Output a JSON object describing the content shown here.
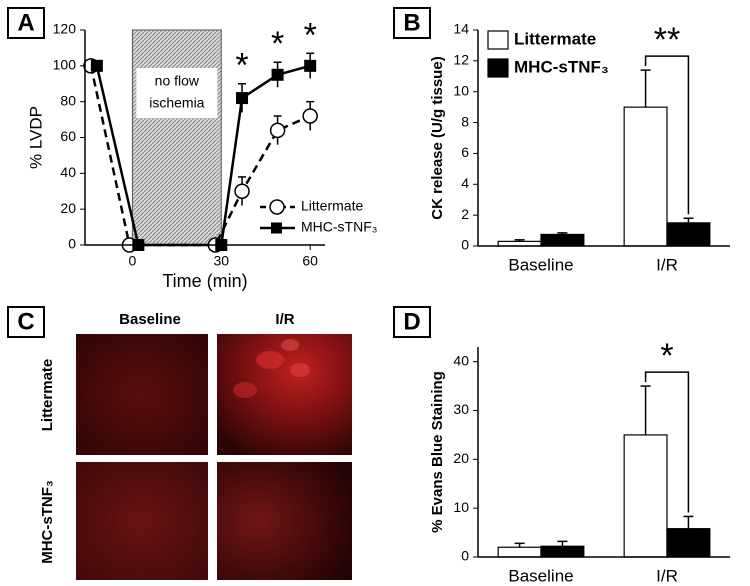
{
  "chart_data": [
    {
      "type": "line",
      "label": "A",
      "xlabel": "Time (min)",
      "ylabel": "% LVDP",
      "xlim": [
        -16,
        65
      ],
      "xticks": [
        0,
        30,
        60
      ],
      "ylim": [
        0,
        120
      ],
      "yticks": [
        0,
        20,
        40,
        60,
        80,
        100,
        120
      ],
      "shaded_region": {
        "x": [
          0,
          30
        ],
        "text": [
          "no flow",
          "ischemia"
        ]
      },
      "series": [
        {
          "name": "Littermate",
          "color": "#ffffff",
          "marker": "circle",
          "line_style": "dashed",
          "x": [
            -14,
            -1,
            28,
            37,
            49,
            60
          ],
          "values": [
            100,
            0,
            0,
            30,
            64,
            72
          ],
          "errors": [
            null,
            null,
            null,
            8,
            8,
            8
          ]
        },
        {
          "name": "MHC-sTNF₃",
          "color": "#000000",
          "marker": "square",
          "line_style": "solid",
          "x": [
            -12,
            2,
            30,
            37,
            49,
            60
          ],
          "values": [
            100,
            0,
            0,
            82,
            95,
            100
          ],
          "errors": [
            null,
            null,
            null,
            8,
            7,
            7
          ]
        }
      ],
      "legend": "lower right",
      "annotations": [
        {
          "text": "*",
          "x": 37
        },
        {
          "text": "*",
          "x": 49
        },
        {
          "text": "*",
          "x": 60
        }
      ]
    },
    {
      "type": "bar",
      "label": "B",
      "ylabel": "CK release (U/g tissue)",
      "categories": [
        "Baseline",
        "I/R"
      ],
      "ylim": [
        0,
        14
      ],
      "yticks": [
        0,
        2,
        4,
        6,
        8,
        10,
        12,
        14
      ],
      "series": [
        {
          "name": "Littermate",
          "color": "#ffffff",
          "values": [
            0.3,
            9.0
          ],
          "errors": [
            0.1,
            2.4
          ]
        },
        {
          "name": "MHC-sTNF₃",
          "color": "#000000",
          "values": [
            0.75,
            1.5
          ],
          "errors": [
            0.1,
            0.3
          ]
        }
      ],
      "legend": "upper left",
      "annotations": [
        {
          "text": "**",
          "category": 1
        }
      ]
    },
    {
      "type": "bar",
      "label": "D",
      "ylabel": "% Evans Blue Staining",
      "categories": [
        "Baseline",
        "I/R"
      ],
      "ylim": [
        0,
        43
      ],
      "yticks": [
        0,
        10,
        20,
        30,
        40
      ],
      "series": [
        {
          "name": null,
          "color": "#ffffff",
          "values": [
            2,
            25
          ],
          "errors": [
            0.8,
            10
          ]
        },
        {
          "name": null,
          "color": "#000000",
          "values": [
            2.2,
            5.8
          ],
          "errors": [
            1,
            2.5
          ]
        }
      ],
      "annotations": [
        {
          "text": "*",
          "category": 1
        }
      ]
    }
  ],
  "image_panel": {
    "label": "C",
    "columns": [
      "Baseline",
      "I/R"
    ],
    "rows": [
      "Littermate",
      "MHC-sTNF₃"
    ]
  }
}
